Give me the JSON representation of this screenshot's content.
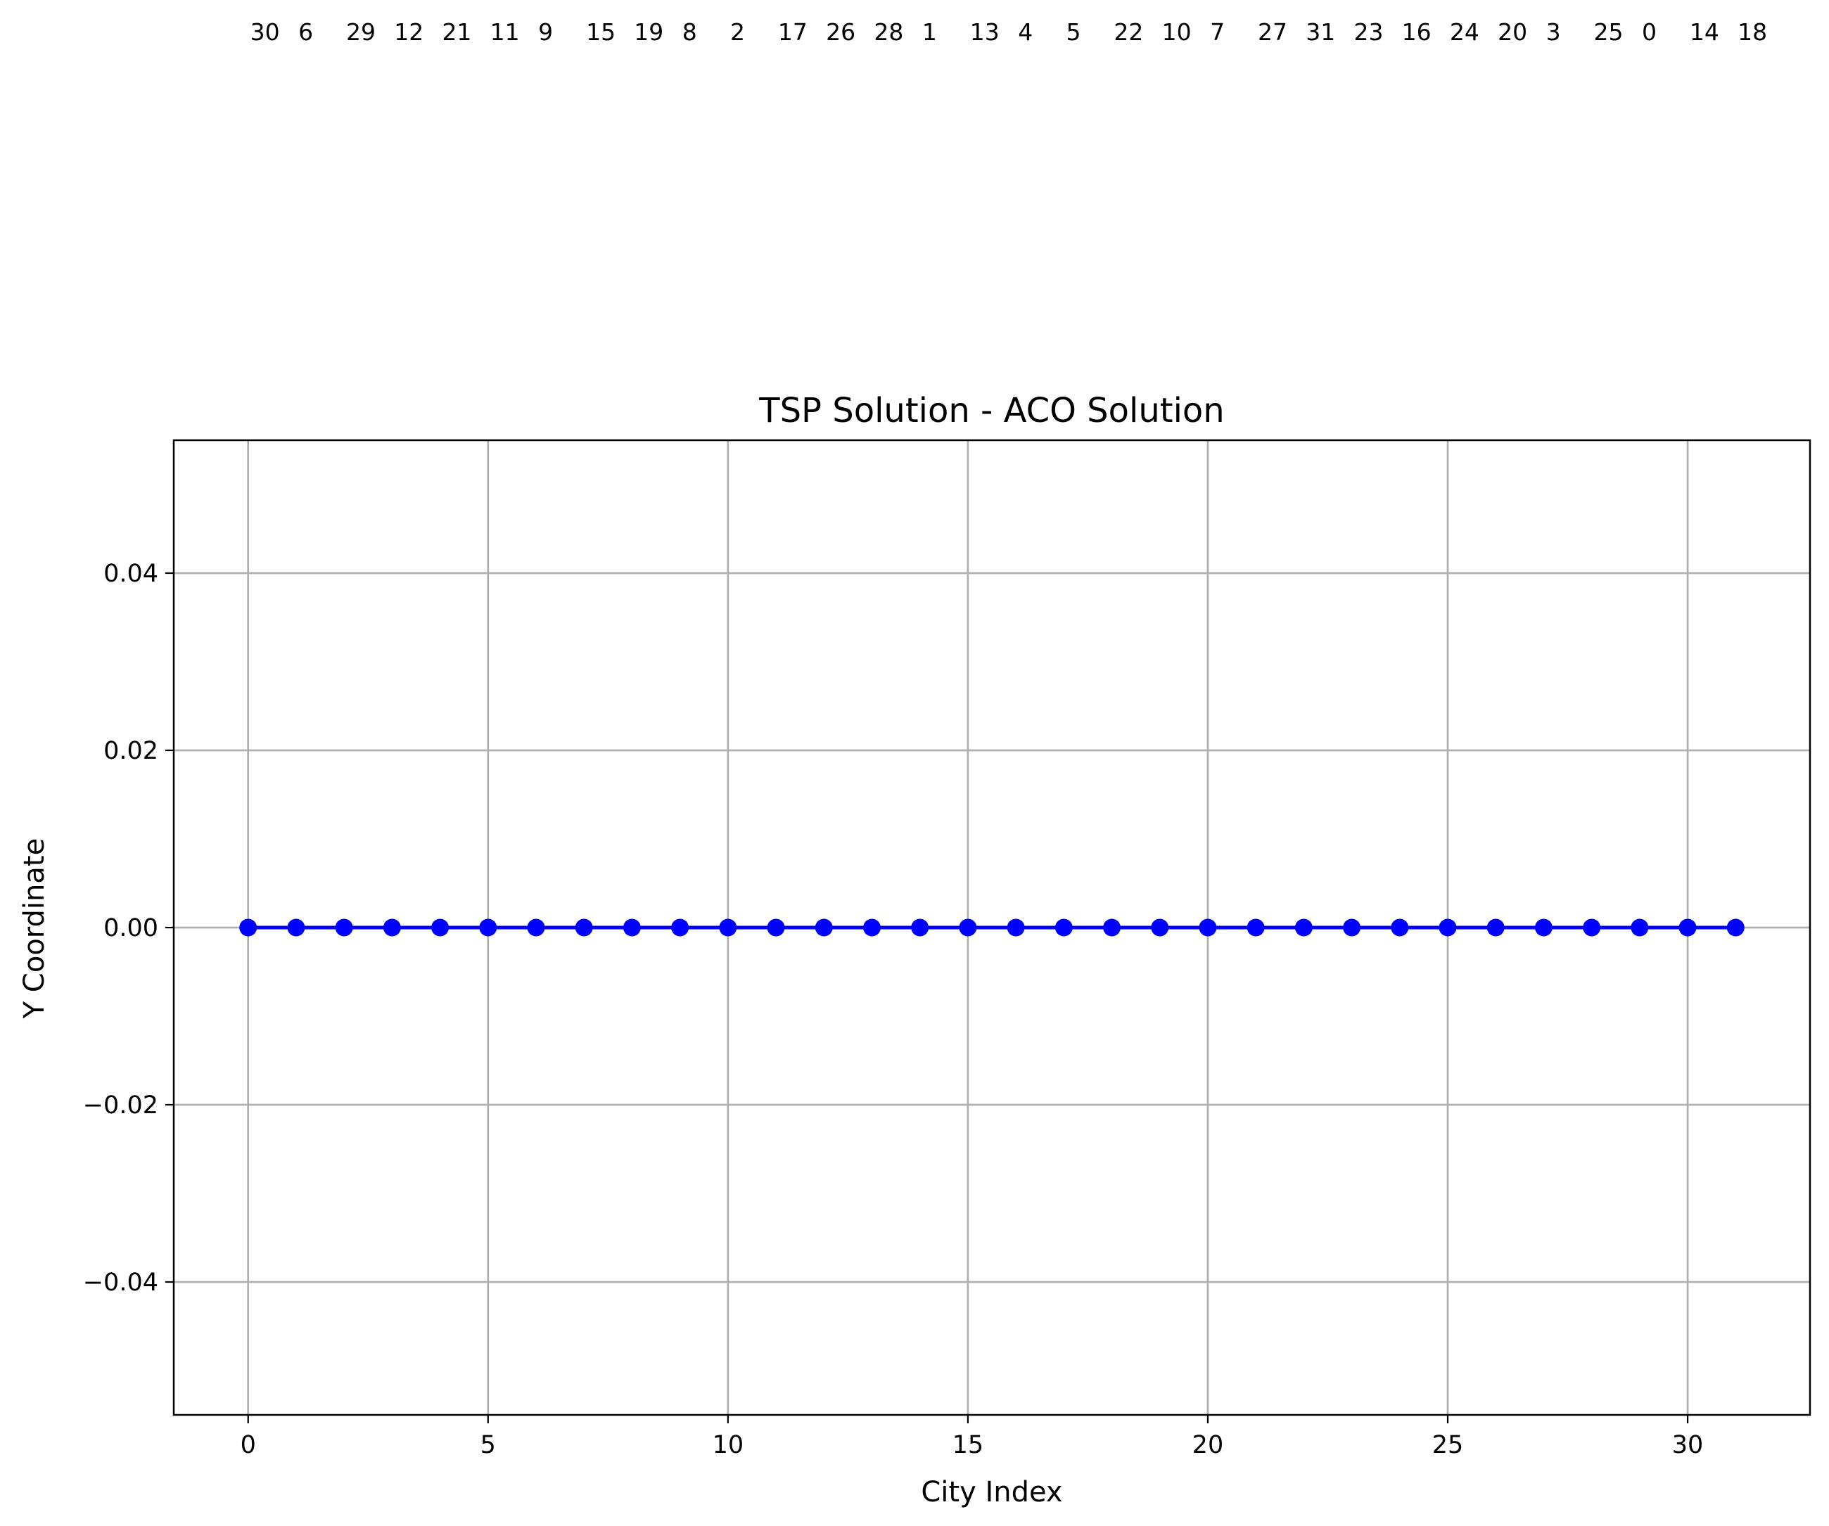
{
  "chart_data": {
    "type": "line",
    "title": "TSP Solution - ACO Solution",
    "xlabel": "City Index",
    "ylabel": "Y Coordinate",
    "xlim": [
      -1.55,
      32.55
    ],
    "ylim": [
      -0.055,
      0.055
    ],
    "x_ticks": [
      0,
      5,
      10,
      15,
      20,
      25,
      30
    ],
    "y_ticks": [
      -0.04,
      -0.02,
      0.0,
      0.02,
      0.04
    ],
    "y_tick_labels": [
      "−0.04",
      "−0.02",
      "0.00",
      "0.02",
      "0.04"
    ],
    "grid": true,
    "series": [
      {
        "color": "#0000ff",
        "marker": "circle",
        "x": [
          0,
          1,
          2,
          3,
          4,
          5,
          6,
          7,
          8,
          9,
          10,
          11,
          12,
          13,
          14,
          15,
          16,
          17,
          18,
          19,
          20,
          21,
          22,
          23,
          24,
          25,
          26,
          27,
          28,
          29,
          30,
          31
        ],
        "y": [
          0,
          0,
          0,
          0,
          0,
          0,
          0,
          0,
          0,
          0,
          0,
          0,
          0,
          0,
          0,
          0,
          0,
          0,
          0,
          0,
          0,
          0,
          0,
          0,
          0,
          0,
          0,
          0,
          0,
          0,
          0,
          0
        ]
      }
    ],
    "city_labels": [
      {
        "text": "30",
        "x": 0.35
      },
      {
        "text": "6",
        "x": 1.2
      },
      {
        "text": "29",
        "x": 2.35
      },
      {
        "text": "12",
        "x": 3.35
      },
      {
        "text": "21",
        "x": 4.35
      },
      {
        "text": "11",
        "x": 5.35
      },
      {
        "text": "9",
        "x": 6.2
      },
      {
        "text": "15",
        "x": 7.35
      },
      {
        "text": "19",
        "x": 8.35
      },
      {
        "text": "8",
        "x": 9.2
      },
      {
        "text": "2",
        "x": 10.2
      },
      {
        "text": "17",
        "x": 11.35
      },
      {
        "text": "26",
        "x": 12.35
      },
      {
        "text": "28",
        "x": 13.35
      },
      {
        "text": "1",
        "x": 14.2
      },
      {
        "text": "13",
        "x": 15.35
      },
      {
        "text": "4",
        "x": 16.2
      },
      {
        "text": "5",
        "x": 17.2
      },
      {
        "text": "22",
        "x": 18.35
      },
      {
        "text": "10",
        "x": 19.35
      },
      {
        "text": "7",
        "x": 20.2
      },
      {
        "text": "27",
        "x": 21.35
      },
      {
        "text": "31",
        "x": 22.35
      },
      {
        "text": "23",
        "x": 23.35
      },
      {
        "text": "16",
        "x": 24.35
      },
      {
        "text": "24",
        "x": 25.35
      },
      {
        "text": "20",
        "x": 26.35
      },
      {
        "text": "3",
        "x": 27.2
      },
      {
        "text": "25",
        "x": 28.35
      },
      {
        "text": "0",
        "x": 29.2
      },
      {
        "text": "14",
        "x": 30.35
      },
      {
        "text": "18",
        "x": 31.35
      }
    ]
  }
}
